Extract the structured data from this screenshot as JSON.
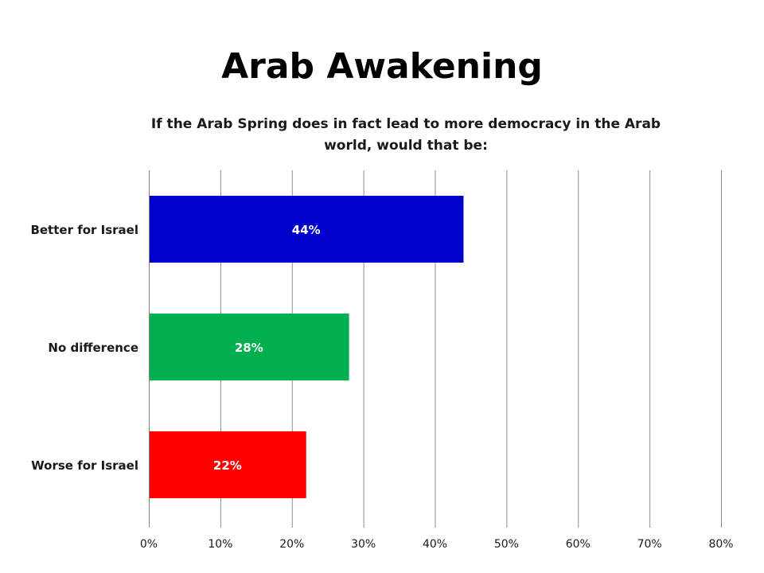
{
  "slide": {
    "title": "Arab Awakening"
  },
  "chart_data": {
    "type": "bar",
    "orientation": "horizontal",
    "title": "If the Arab Spring does in fact lead to more democracy in the Arab world, would that be:",
    "categories": [
      "Better for Israel",
      "No difference",
      "Worse for Israel"
    ],
    "values": [
      44,
      28,
      22
    ],
    "value_labels": [
      "44%",
      "28%",
      "22%"
    ],
    "colors": [
      "#0000c8",
      "#00b050",
      "#ff0000"
    ],
    "xlim": [
      0,
      80
    ],
    "x_ticks": [
      0,
      10,
      20,
      30,
      40,
      50,
      60,
      70,
      80
    ],
    "x_tick_labels": [
      "0%",
      "10%",
      "20%",
      "30%",
      "40%",
      "50%",
      "60%",
      "70%",
      "80%"
    ],
    "xlabel": "",
    "ylabel": "",
    "grid": true,
    "legend": "none"
  }
}
